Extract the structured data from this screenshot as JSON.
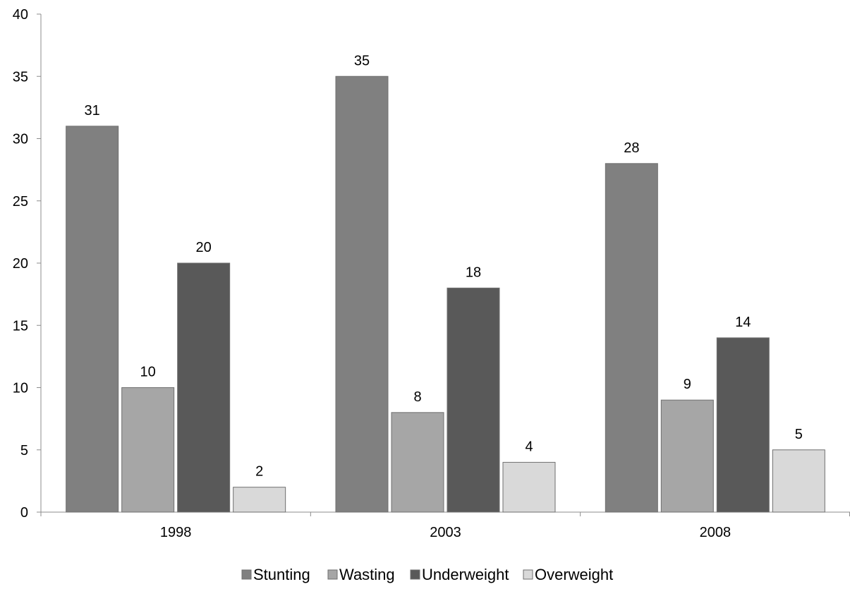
{
  "chart_data": {
    "type": "bar",
    "categories": [
      "1998",
      "2003",
      "2008"
    ],
    "series": [
      {
        "name": "Stunting",
        "values": [
          31,
          35,
          28
        ],
        "color": "#808080"
      },
      {
        "name": "Wasting",
        "values": [
          10,
          8,
          9
        ],
        "color": "#a6a6a6"
      },
      {
        "name": "Underweight",
        "values": [
          20,
          18,
          14
        ],
        "color": "#595959"
      },
      {
        "name": "Overweight",
        "values": [
          2,
          4,
          5
        ],
        "color": "#d9d9d9"
      }
    ],
    "title": "",
    "xlabel": "",
    "ylabel": "",
    "ylim": [
      0,
      40
    ],
    "yticks": [
      0,
      5,
      10,
      15,
      20,
      25,
      30,
      35,
      40
    ],
    "grid": false,
    "data_labels": true,
    "legend_position": "bottom"
  }
}
